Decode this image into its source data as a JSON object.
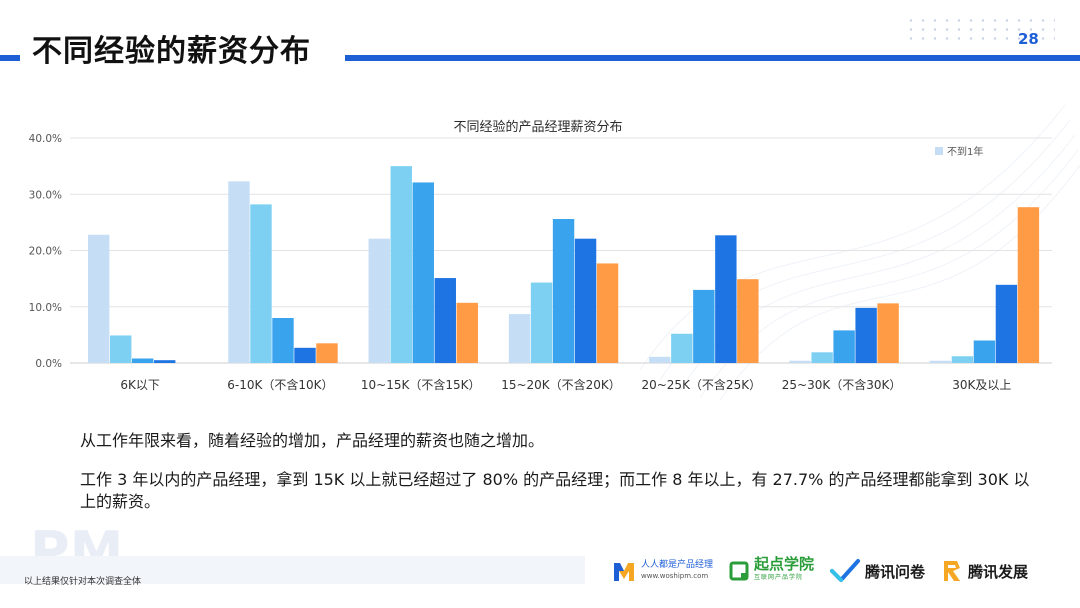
{
  "slide": {
    "title": "不同经验的薪资分布",
    "page_number": "28"
  },
  "chart_data": {
    "type": "bar",
    "title": "不同经验的产品经理薪资分布",
    "categories": [
      "6K以下",
      "6-10K（不含10K）",
      "10~15K（不含15K）",
      "15~20K（不含20K）",
      "20~25K（不含25K）",
      "25~30K（不含30K）",
      "30K及以上"
    ],
    "series": [
      {
        "name": "不到1年",
        "color": "#c5def5",
        "values": [
          22.8,
          32.3,
          22.1,
          8.7,
          1.1,
          0.4,
          0.4
        ]
      },
      {
        "color": "#7dd0f2",
        "values": [
          4.9,
          28.2,
          35.0,
          14.3,
          5.2,
          1.9,
          1.2
        ]
      },
      {
        "color": "#3aa3ee",
        "values": [
          0.8,
          8.0,
          32.1,
          25.6,
          13.0,
          5.8,
          4.0
        ]
      },
      {
        "color": "#1e74e2",
        "values": [
          0.5,
          2.7,
          15.1,
          22.1,
          22.7,
          9.8,
          13.9
        ]
      },
      {
        "color": "#ff9b45",
        "values": [
          0,
          3.5,
          10.7,
          17.7,
          14.9,
          10.6,
          27.7
        ]
      }
    ],
    "yticks": [
      "0.0%",
      "10.0%",
      "20.0%",
      "30.0%",
      "40.0%"
    ],
    "ylim": [
      0,
      40
    ],
    "grid": true,
    "legend_position": "top-right"
  },
  "text": {
    "line1": "从工作年限来看，随着经验的增加，产品经理的薪资也随之增加。",
    "line2": "工作 3 年以内的产品经理，拿到 15K 以上就已经超过了 80%  的产品经理；而工作 8 年以上，有 27.7% 的产品经理都能拿到 30K 以上的薪资。"
  },
  "watermark": "PM",
  "footnote": "以上结果仅针对本次调查全体",
  "logos": {
    "woshipm_name": "人人都是产品经理",
    "woshipm_url": "www.woshipm.com",
    "qidian": "起点学院",
    "qidian_sub": "互联网产品学院",
    "wenjuan": "腾讯问卷",
    "fazhan": "腾讯发展"
  }
}
